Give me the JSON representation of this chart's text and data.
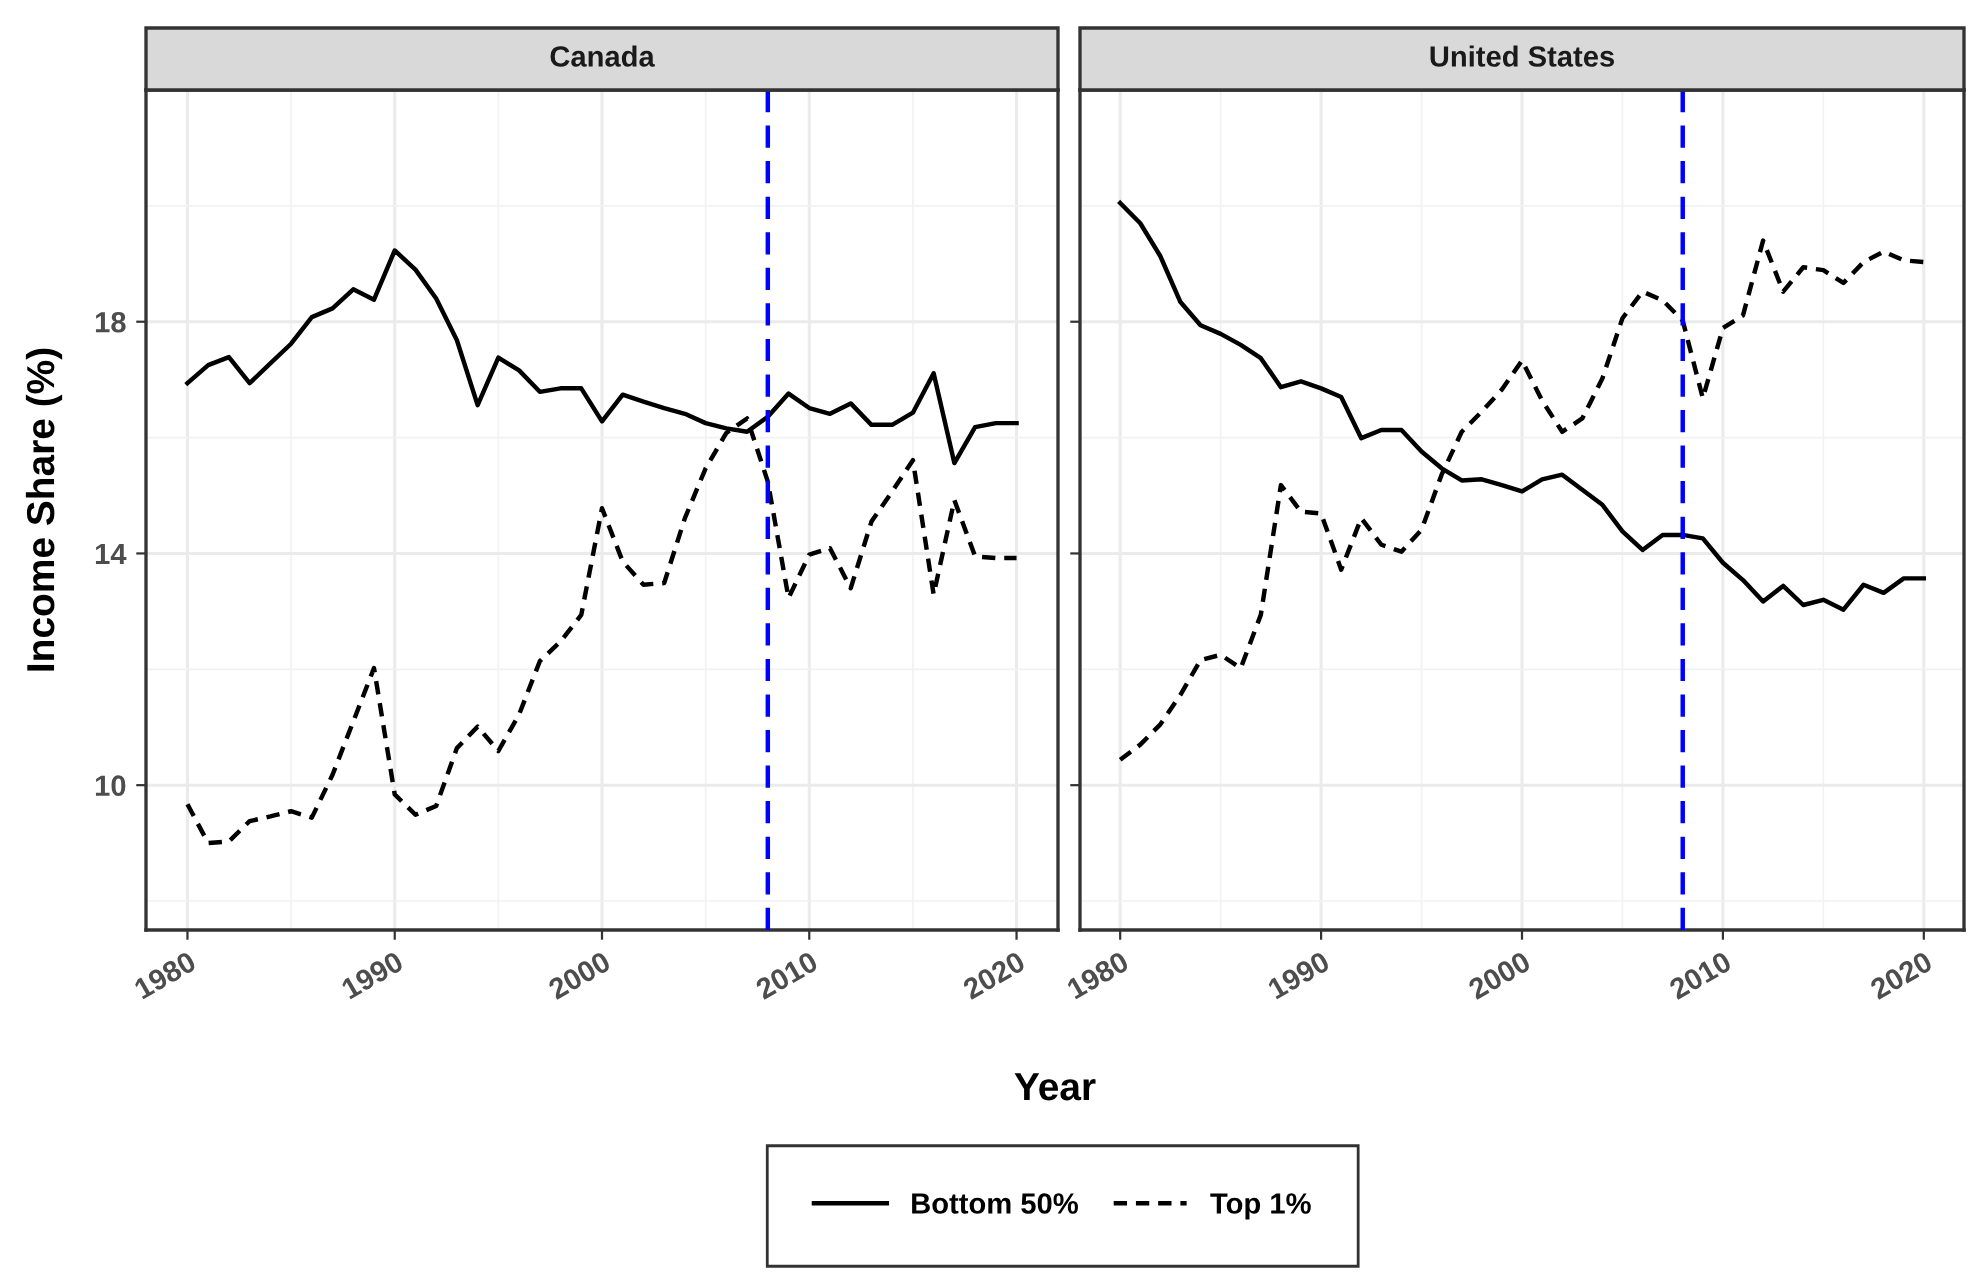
{
  "chart_data": [
    {
      "type": "line",
      "title": "Canada",
      "xlabel": "Year",
      "ylabel": "Income Share (%)",
      "grid": true,
      "legend": "bottom",
      "x": [
        1980,
        1981,
        1982,
        1983,
        1984,
        1985,
        1986,
        1987,
        1988,
        1989,
        1990,
        1991,
        1992,
        1993,
        1994,
        1995,
        1996,
        1997,
        1998,
        1999,
        2000,
        2001,
        2002,
        2003,
        2004,
        2005,
        2006,
        2007,
        2008,
        2009,
        2010,
        2011,
        2012,
        2013,
        2014,
        2015,
        2016,
        2017,
        2018,
        2019,
        2020
      ],
      "xlim": [
        1978,
        2022
      ],
      "xticks": [
        1980,
        1990,
        2000,
        2010,
        2020
      ],
      "ylim": [
        7.5,
        22
      ],
      "yticks": [
        10,
        14,
        18
      ],
      "ref_lines": [
        {
          "axis": "x",
          "value": 2008,
          "color": "#0000ff",
          "line_style": "dashed"
        }
      ],
      "series": [
        {
          "name": "Bottom 50%",
          "color": "#000000",
          "line_style": "solid",
          "values": [
            16.94,
            17.25,
            17.39,
            16.94,
            17.28,
            17.62,
            18.08,
            18.23,
            18.56,
            18.38,
            19.23,
            18.9,
            18.4,
            17.68,
            16.56,
            17.38,
            17.16,
            16.79,
            16.85,
            16.85,
            16.28,
            16.74,
            16.62,
            16.51,
            16.41,
            16.25,
            16.16,
            16.1,
            16.36,
            16.76,
            16.51,
            16.41,
            16.59,
            16.22,
            16.22,
            16.43,
            17.11,
            15.56,
            16.18,
            16.25,
            16.25
          ]
        },
        {
          "name": "Top 1%",
          "color": "#000000",
          "line_style": "dashed",
          "values": [
            9.67,
            9.0,
            9.03,
            9.38,
            9.46,
            9.55,
            9.44,
            10.18,
            11.1,
            12.02,
            9.84,
            9.49,
            9.64,
            10.64,
            11.01,
            10.59,
            11.22,
            12.14,
            12.48,
            12.94,
            14.78,
            13.86,
            13.46,
            13.49,
            14.61,
            15.47,
            16.08,
            16.33,
            15.24,
            13.23,
            13.98,
            14.09,
            13.4,
            14.55,
            15.07,
            15.61,
            13.29,
            14.92,
            13.95,
            13.92,
            13.92
          ]
        }
      ]
    },
    {
      "type": "line",
      "title": "United States",
      "grid": true,
      "tick_labels": "x",
      "x": [
        1980,
        1981,
        1982,
        1983,
        1984,
        1985,
        1986,
        1987,
        1988,
        1989,
        1990,
        1991,
        1992,
        1993,
        1994,
        1995,
        1996,
        1997,
        1998,
        1999,
        2000,
        2001,
        2002,
        2003,
        2004,
        2005,
        2006,
        2007,
        2008,
        2009,
        2010,
        2011,
        2012,
        2013,
        2014,
        2015,
        2016,
        2017,
        2018,
        2019,
        2020
      ],
      "xlim": [
        1978,
        2022
      ],
      "xticks": [
        1980,
        1990,
        2000,
        2010,
        2020
      ],
      "ylim": [
        7.5,
        22
      ],
      "yticks": [
        10,
        14,
        18
      ],
      "ref_lines": [
        {
          "axis": "x",
          "value": 2008,
          "color": "#0000ff",
          "line_style": "dashed"
        }
      ],
      "series": [
        {
          "name": "Bottom 50%",
          "color": "#000000",
          "line_style": "solid",
          "values": [
            20.05,
            19.7,
            19.13,
            18.34,
            17.94,
            17.79,
            17.6,
            17.37,
            16.87,
            16.97,
            16.85,
            16.7,
            15.99,
            16.13,
            16.13,
            15.76,
            15.47,
            15.26,
            15.28,
            15.18,
            15.07,
            15.28,
            15.36,
            15.1,
            14.84,
            14.38,
            14.06,
            14.32,
            14.32,
            14.26,
            13.84,
            13.54,
            13.17,
            13.44,
            13.11,
            13.2,
            13.03,
            13.46,
            13.32,
            13.57,
            13.57
          ]
        },
        {
          "name": "Top 1%",
          "color": "#000000",
          "line_style": "dashed",
          "values": [
            10.44,
            10.7,
            11.05,
            11.56,
            12.16,
            12.25,
            12.02,
            12.94,
            15.18,
            14.72,
            14.69,
            13.72,
            14.61,
            14.15,
            14.03,
            14.41,
            15.36,
            16.1,
            16.45,
            16.83,
            17.33,
            16.64,
            16.1,
            16.33,
            17.02,
            18.06,
            18.52,
            18.37,
            18.02,
            16.68,
            17.89,
            18.11,
            19.4,
            18.52,
            18.94,
            18.89,
            18.67,
            19.03,
            19.21,
            19.06,
            19.03
          ]
        }
      ]
    }
  ]
}
